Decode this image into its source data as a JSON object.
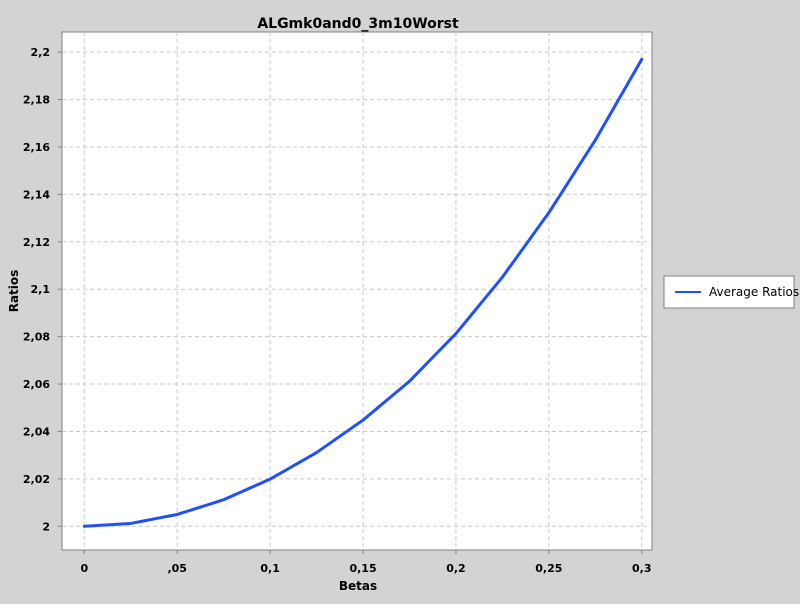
{
  "chart_data": {
    "type": "line",
    "title": "ALGmk0and0_3m10Worst",
    "xlabel": "Betas",
    "ylabel": "Ratios",
    "xlim": [
      -0.012,
      0.3055
    ],
    "ylim": [
      1.99,
      2.2085
    ],
    "x_ticks": [
      0,
      0.05,
      0.1,
      0.15,
      0.2,
      0.25,
      0.3
    ],
    "x_tick_labels": [
      "0",
      ",05",
      "0,1",
      "0,15",
      "0,2",
      "0,25",
      "0,3"
    ],
    "y_ticks": [
      2.0,
      2.02,
      2.04,
      2.06,
      2.08,
      2.1,
      2.12,
      2.14,
      2.16,
      2.18,
      2.2
    ],
    "y_tick_labels": [
      "2",
      "2,02",
      "2,04",
      "2,06",
      "2,08",
      "2,1",
      "2,12",
      "2,14",
      "2,16",
      "2,18",
      "2,2"
    ],
    "grid": true,
    "legend_position": "right",
    "series": [
      {
        "name": "Average Ratios",
        "color": "#1f4fff",
        "x": [
          0,
          0.025,
          0.05,
          0.075,
          0.1,
          0.125,
          0.15,
          0.175,
          0.2,
          0.225,
          0.25,
          0.275,
          0.3
        ],
        "y": [
          2.0,
          2.0012,
          2.005,
          2.0112,
          2.0199,
          2.0311,
          2.0448,
          2.0612,
          2.0813,
          2.1051,
          2.1323,
          2.1629,
          2.197
        ]
      }
    ]
  }
}
